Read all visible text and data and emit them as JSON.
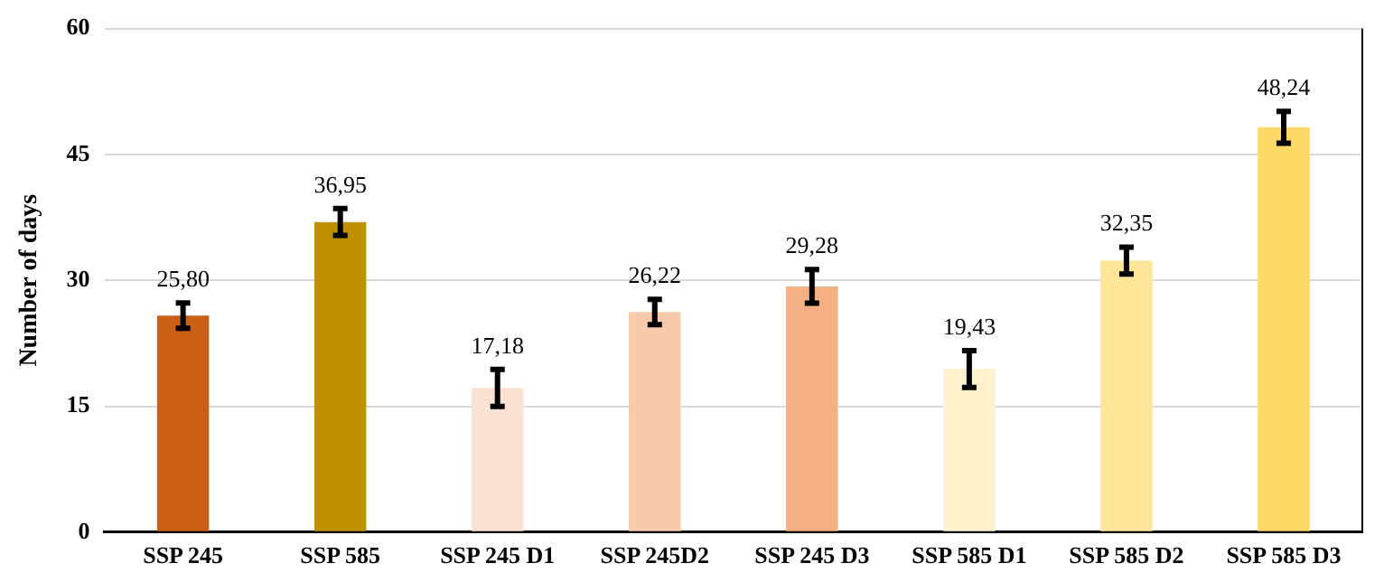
{
  "chart_data": {
    "type": "bar",
    "ylabel": "Number of days",
    "categories": [
      "SSP 245",
      "SSP 585",
      "SSP 245 D1",
      "SSP 245D2",
      "SSP 245 D3",
      "SSP 585 D1",
      "SSP 585 D2",
      "SSP 585 D3"
    ],
    "values": [
      25.8,
      36.95,
      17.18,
      26.22,
      29.28,
      19.43,
      32.35,
      48.24
    ],
    "colors": [
      "#c95f16",
      "#bf9000",
      "#fbe2d5",
      "#f7caac",
      "#f4b083",
      "#fff2cc",
      "#fee599",
      "#ffd966"
    ],
    "errors": [
      1.5,
      1.6,
      2.2,
      1.5,
      2.0,
      2.2,
      1.6,
      1.9
    ],
    "value_labels": [
      "25,80",
      "36,95",
      "17,18",
      "26,22",
      "29,28",
      "19,43",
      "32,35",
      "48,24"
    ],
    "ylim": [
      0,
      60
    ],
    "yticks": [
      0,
      15,
      30,
      45,
      60
    ],
    "grid": "y",
    "legend": false
  }
}
